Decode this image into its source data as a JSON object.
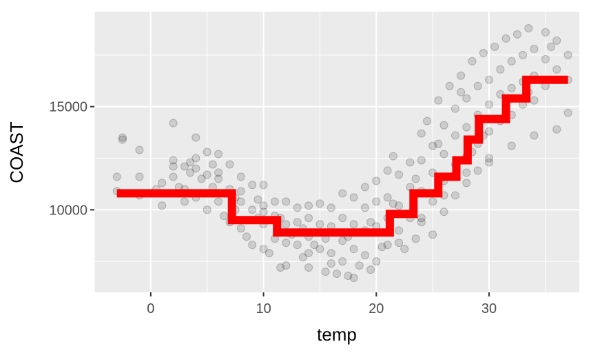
{
  "chart_data": {
    "type": "scatter",
    "title": "",
    "xlabel": "temp",
    "ylabel": "COAST",
    "xlim": [
      -5,
      38
    ],
    "ylim": [
      6000,
      19600
    ],
    "x_ticks": [
      0,
      10,
      20,
      30
    ],
    "x_tick_labels": [
      "0",
      "10",
      "20",
      "30"
    ],
    "y_ticks": [
      10000,
      15000
    ],
    "y_tick_labels": [
      "10000",
      "15000"
    ],
    "grid": true,
    "legend": "none",
    "scatter_points": [
      [
        -3,
        11600
      ],
      [
        -3,
        10900
      ],
      [
        -2.5,
        13500
      ],
      [
        -2.5,
        13400
      ],
      [
        -1,
        12900
      ],
      [
        -1,
        11600
      ],
      [
        -1,
        10700
      ],
      [
        0.2,
        10800
      ],
      [
        1,
        11300
      ],
      [
        1,
        10200
      ],
      [
        2,
        14200
      ],
      [
        2,
        12400
      ],
      [
        2,
        11600
      ],
      [
        2.5,
        11100
      ],
      [
        3,
        12100
      ],
      [
        3,
        11000
      ],
      [
        3,
        10400
      ],
      [
        3.5,
        12300
      ],
      [
        4,
        13500
      ],
      [
        4,
        12000
      ],
      [
        4,
        10600
      ],
      [
        4.5,
        11500
      ],
      [
        5,
        12800
      ],
      [
        5,
        11700
      ],
      [
        5,
        10000
      ],
      [
        5.5,
        12200
      ],
      [
        6,
        12700
      ],
      [
        6,
        11500
      ],
      [
        6,
        10400
      ],
      [
        6.5,
        9700
      ],
      [
        7,
        12200
      ],
      [
        7,
        11000
      ],
      [
        7,
        9400
      ],
      [
        7.5,
        10000
      ],
      [
        8,
        11600
      ],
      [
        8,
        10400
      ],
      [
        8,
        9100
      ],
      [
        8.5,
        8700
      ],
      [
        9,
        11200
      ],
      [
        9,
        10000
      ],
      [
        9,
        8300
      ],
      [
        9.5,
        9600
      ],
      [
        10,
        11200
      ],
      [
        10,
        10200
      ],
      [
        10,
        9300
      ],
      [
        10,
        8100
      ],
      [
        10.5,
        7900
      ],
      [
        11,
        10400
      ],
      [
        11,
        9700
      ],
      [
        11,
        8600
      ],
      [
        11.5,
        7200
      ],
      [
        12,
        10400
      ],
      [
        12,
        9300
      ],
      [
        12,
        8400
      ],
      [
        12,
        7300
      ],
      [
        12.5,
        8800
      ],
      [
        13,
        10100
      ],
      [
        13,
        9400
      ],
      [
        13,
        8300
      ],
      [
        13.5,
        7700
      ],
      [
        14,
        10200
      ],
      [
        14,
        9600
      ],
      [
        14,
        8700
      ],
      [
        14,
        7200
      ],
      [
        14.5,
        8300
      ],
      [
        15,
        10300
      ],
      [
        15,
        9300
      ],
      [
        15,
        8100
      ],
      [
        15.5,
        7000
      ],
      [
        16,
        10100
      ],
      [
        16,
        9200
      ],
      [
        16,
        7900
      ],
      [
        16.5,
        6900
      ],
      [
        17,
        10800
      ],
      [
        17,
        9600
      ],
      [
        17,
        8500
      ],
      [
        17,
        7500
      ],
      [
        17.5,
        6800
      ],
      [
        18,
        10600
      ],
      [
        18,
        9300
      ],
      [
        18,
        8100
      ],
      [
        18.5,
        7300
      ],
      [
        19,
        11100
      ],
      [
        19,
        10100
      ],
      [
        19,
        9000
      ],
      [
        19,
        7800
      ],
      [
        19.5,
        7100
      ],
      [
        20,
        11400
      ],
      [
        20,
        10400
      ],
      [
        20,
        9200
      ],
      [
        20.5,
        8200
      ],
      [
        21,
        11900
      ],
      [
        21,
        10600
      ],
      [
        21,
        9600
      ],
      [
        21,
        8300
      ],
      [
        21.5,
        12600
      ],
      [
        22,
        11700
      ],
      [
        22,
        10200
      ],
      [
        22,
        9000
      ],
      [
        22.5,
        8100
      ],
      [
        23,
        12300
      ],
      [
        23,
        11100
      ],
      [
        23,
        9600
      ],
      [
        23.5,
        8600
      ],
      [
        24,
        13700
      ],
      [
        24,
        12400
      ],
      [
        24,
        10900
      ],
      [
        24,
        9600
      ],
      [
        24.5,
        14300
      ],
      [
        25,
        13100
      ],
      [
        25,
        11800
      ],
      [
        25,
        10400
      ],
      [
        25,
        8800
      ],
      [
        25.5,
        15300
      ],
      [
        26,
        14100
      ],
      [
        26,
        12700
      ],
      [
        26,
        11400
      ],
      [
        26,
        9900
      ],
      [
        26.5,
        16000
      ],
      [
        27,
        14900
      ],
      [
        27,
        13600
      ],
      [
        27,
        12200
      ],
      [
        27,
        10700
      ],
      [
        27.5,
        16500
      ],
      [
        28,
        15400
      ],
      [
        28,
        14000
      ],
      [
        28,
        12600
      ],
      [
        28,
        11300
      ],
      [
        28.5,
        17200
      ],
      [
        29,
        16000
      ],
      [
        29,
        14600
      ],
      [
        29,
        13200
      ],
      [
        29,
        11900
      ],
      [
        29.5,
        17600
      ],
      [
        30,
        16300
      ],
      [
        30,
        15100
      ],
      [
        30,
        13800
      ],
      [
        30,
        12300
      ],
      [
        30.5,
        17900
      ],
      [
        31,
        16800
      ],
      [
        31,
        15600
      ],
      [
        31,
        14300
      ],
      [
        31.5,
        18300
      ],
      [
        32,
        17200
      ],
      [
        32,
        15900
      ],
      [
        32,
        14600
      ],
      [
        32.5,
        18500
      ],
      [
        33,
        17500
      ],
      [
        33,
        16200
      ],
      [
        33,
        15100
      ],
      [
        33.5,
        18800
      ],
      [
        34,
        17800
      ],
      [
        34,
        16500
      ],
      [
        34,
        15300
      ],
      [
        35,
        18600
      ],
      [
        35,
        17300
      ],
      [
        35,
        16000
      ],
      [
        36,
        18200
      ],
      [
        36,
        16800
      ],
      [
        36,
        13900
      ],
      [
        37,
        17500
      ],
      [
        37,
        16300
      ],
      [
        37,
        14700
      ],
      [
        34,
        13600
      ],
      [
        32,
        13100
      ],
      [
        30,
        12500
      ],
      [
        28,
        11800
      ],
      [
        26,
        10700
      ],
      [
        24,
        9400
      ],
      [
        22,
        8400
      ],
      [
        20,
        7500
      ],
      [
        18,
        6700
      ],
      [
        16,
        7400
      ],
      [
        14,
        7900
      ],
      [
        12,
        8900
      ],
      [
        10,
        9900
      ],
      [
        8,
        10900
      ],
      [
        6,
        11800
      ],
      [
        4,
        12500
      ],
      [
        2,
        12100
      ],
      [
        27.5,
        15700
      ],
      [
        25.5,
        13200
      ],
      [
        23.5,
        11500
      ],
      [
        21.5,
        10300
      ],
      [
        19.5,
        9400
      ],
      [
        17.5,
        8700
      ],
      [
        15.5,
        8600
      ],
      [
        13.5,
        9100
      ],
      [
        11.5,
        9600
      ],
      [
        9.5,
        10500
      ],
      [
        7.5,
        10600
      ],
      [
        5.5,
        11100
      ],
      [
        3.5,
        11800
      ],
      [
        0.5,
        11000
      ],
      [
        31.5,
        14900
      ],
      [
        33.5,
        15700
      ],
      [
        35.5,
        17900
      ],
      [
        29.5,
        13600
      ],
      [
        28.5,
        12800
      ]
    ],
    "series": [
      {
        "type": "step",
        "color": "#ff0000",
        "steps": [
          [
            -3,
            10800
          ],
          [
            7.2,
            10800
          ],
          [
            7.2,
            9500
          ],
          [
            11.2,
            9500
          ],
          [
            11.2,
            8900
          ],
          [
            21.2,
            8900
          ],
          [
            21.2,
            9800
          ],
          [
            23.3,
            9800
          ],
          [
            23.3,
            10800
          ],
          [
            25.5,
            10800
          ],
          [
            25.5,
            11600
          ],
          [
            27.1,
            11600
          ],
          [
            27.1,
            12400
          ],
          [
            28.1,
            12400
          ],
          [
            28.1,
            13400
          ],
          [
            29.1,
            13400
          ],
          [
            29.1,
            14400
          ],
          [
            31.5,
            14400
          ],
          [
            31.5,
            15400
          ],
          [
            33.3,
            15400
          ],
          [
            33.3,
            16300
          ],
          [
            37,
            16300
          ]
        ]
      }
    ]
  }
}
